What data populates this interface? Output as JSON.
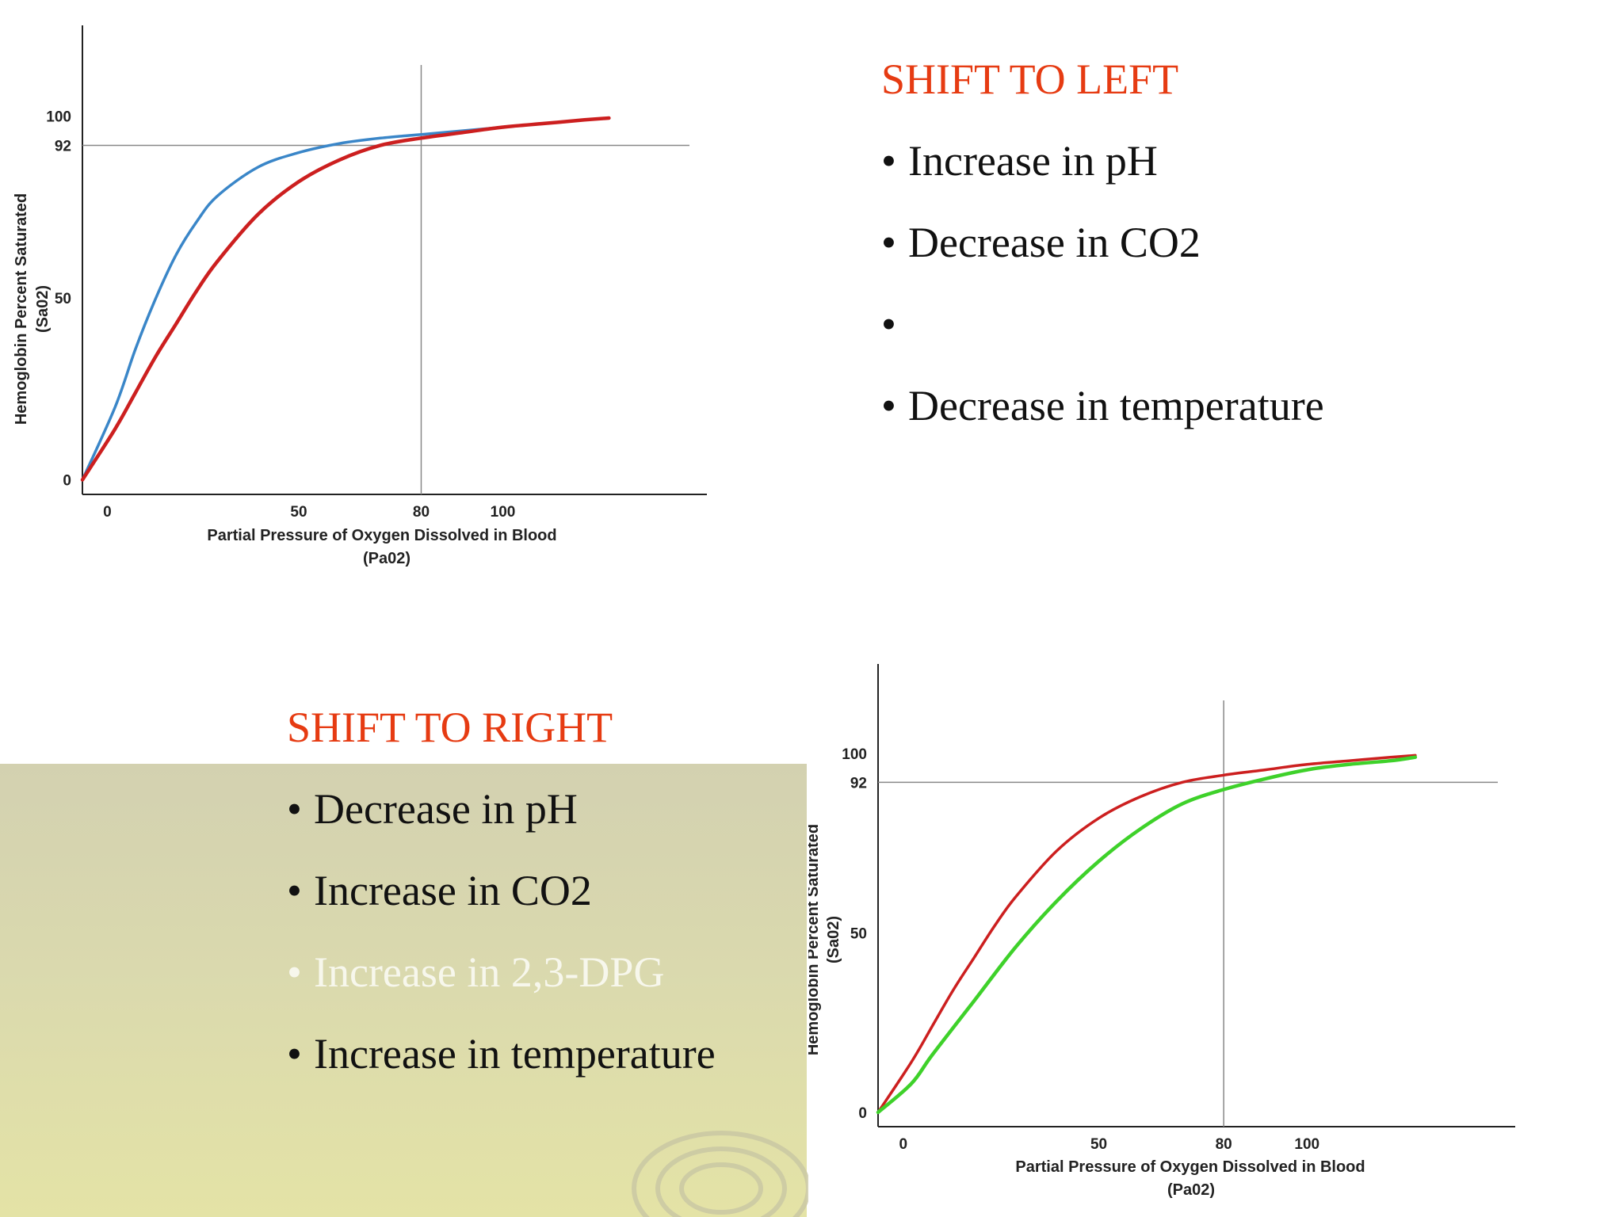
{
  "chart_data": [
    {
      "type": "line",
      "title": "",
      "xlabel": "Partial Pressure of Oxygen Dissolved in Blood",
      "xlabel_unit": "(Pa02)",
      "ylabel": "Hemoglobin Percent Saturated",
      "ylabel_unit": "(Sa02)",
      "xlim": [
        -3,
        150
      ],
      "ylim": [
        -4,
        125
      ],
      "x_ticks": [
        0,
        50,
        80,
        100
      ],
      "y_ticks": [
        0,
        50,
        92,
        100
      ],
      "reference_lines": {
        "x": 80,
        "y": 92
      },
      "grid": false,
      "legend": "none",
      "series": [
        {
          "color": "#3a86c8",
          "points": [
            [
              -3,
              0
            ],
            [
              5,
              20
            ],
            [
              10,
              36
            ],
            [
              15,
              50
            ],
            [
              20,
              62
            ],
            [
              25,
              71
            ],
            [
              30,
              78
            ],
            [
              40,
              86
            ],
            [
              50,
              90
            ],
            [
              60,
              92.5
            ],
            [
              70,
              94
            ],
            [
              80,
              95
            ],
            [
              90,
              96
            ],
            [
              100,
              97
            ],
            [
              110,
              98
            ],
            [
              120,
              99
            ],
            [
              126,
              99.5
            ]
          ]
        },
        {
          "color": "#cc1f1f",
          "points": [
            [
              -3,
              0
            ],
            [
              5,
              14
            ],
            [
              10,
              24
            ],
            [
              15,
              34
            ],
            [
              20,
              43
            ],
            [
              25,
              52
            ],
            [
              30,
              60
            ],
            [
              40,
              73
            ],
            [
              50,
              82
            ],
            [
              60,
              88
            ],
            [
              70,
              92
            ],
            [
              80,
              94
            ],
            [
              90,
              95.5
            ],
            [
              100,
              97
            ],
            [
              110,
              98
            ],
            [
              120,
              99
            ],
            [
              126,
              99.5
            ]
          ]
        }
      ]
    },
    {
      "type": "line",
      "title": "",
      "xlabel": "Partial Pressure of Oxygen Dissolved in Blood",
      "xlabel_unit": "(Pa02)",
      "ylabel": "Hemoglobin Percent Saturated",
      "ylabel_unit": "(Sa02)",
      "xlim": [
        -3,
        150
      ],
      "ylim": [
        -4,
        125
      ],
      "x_ticks": [
        0,
        50,
        80,
        100
      ],
      "y_ticks": [
        0,
        50,
        92,
        100
      ],
      "reference_lines": {
        "x": 80,
        "y": 92
      },
      "grid": false,
      "legend": "none",
      "series": [
        {
          "color": "#cc1f1f",
          "points": [
            [
              -3,
              0
            ],
            [
              5,
              14
            ],
            [
              10,
              24
            ],
            [
              15,
              34
            ],
            [
              20,
              43
            ],
            [
              25,
              52
            ],
            [
              30,
              60
            ],
            [
              40,
              73
            ],
            [
              50,
              82
            ],
            [
              60,
              88
            ],
            [
              70,
              92
            ],
            [
              80,
              94
            ],
            [
              90,
              95.5
            ],
            [
              100,
              97
            ],
            [
              110,
              98
            ],
            [
              120,
              99
            ],
            [
              126,
              99.5
            ]
          ]
        },
        {
          "color": "#3ed12a",
          "points": [
            [
              -3,
              0
            ],
            [
              5,
              8
            ],
            [
              10,
              16
            ],
            [
              20,
              31
            ],
            [
              30,
              46
            ],
            [
              40,
              59
            ],
            [
              50,
              70
            ],
            [
              60,
              79
            ],
            [
              70,
              86
            ],
            [
              80,
              90
            ],
            [
              90,
              93
            ],
            [
              100,
              95.5
            ],
            [
              110,
              97
            ],
            [
              120,
              98
            ],
            [
              126,
              99
            ]
          ]
        }
      ]
    }
  ],
  "left_shift": {
    "heading": "SHIFT TO LEFT",
    "bullet_char": "•",
    "items": [
      {
        "text": "Increase in pH"
      },
      {
        "text": "Decrease in CO2"
      },
      {
        "text": ""
      },
      {
        "text": "Decrease in temperature"
      }
    ]
  },
  "right_shift": {
    "heading": "SHIFT TO RIGHT",
    "bullet_char": "•",
    "items": [
      {
        "text": "Decrease in pH"
      },
      {
        "text": "Increase in CO2"
      },
      {
        "text": "Increase in 2,3-DPG",
        "light": true
      },
      {
        "text": "Increase in temperature"
      }
    ]
  },
  "colors": {
    "heading": "#e63b12",
    "text": "#111111",
    "light_text": "#f7f7ec",
    "axis": "#222222",
    "reference_line": "#888888"
  }
}
